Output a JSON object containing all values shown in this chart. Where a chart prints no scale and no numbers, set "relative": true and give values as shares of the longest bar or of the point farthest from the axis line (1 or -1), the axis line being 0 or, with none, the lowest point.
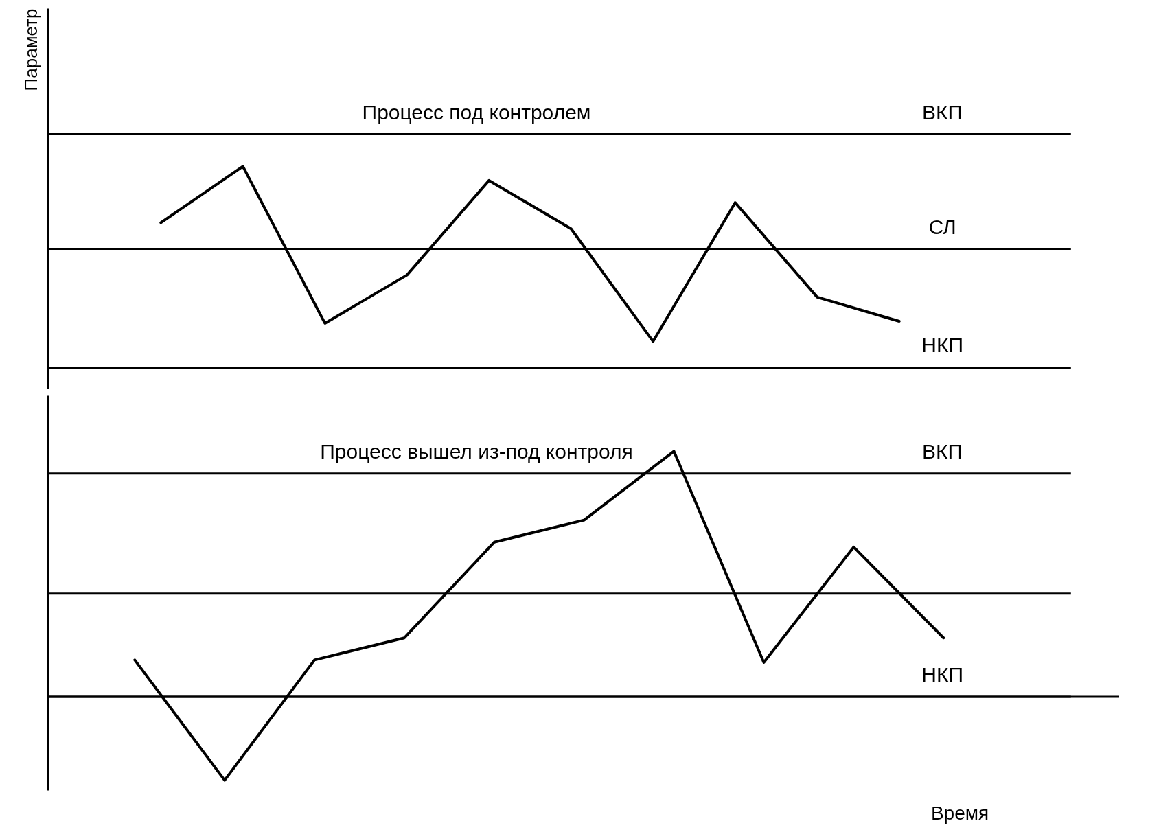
{
  "chart_data": [
    {
      "type": "line",
      "relative": true,
      "ylabel": "Параметр",
      "categories": [
        null,
        null,
        null,
        null,
        null,
        null,
        null,
        null,
        null,
        null
      ],
      "grid": false,
      "marker": "none",
      "line_style": "solid",
      "annotations": [
        "Процесс под контролем"
      ],
      "ref_lines": [
        {
          "axis": "y",
          "value": 1.16,
          "label": "ВКП",
          "color": "#000000"
        },
        {
          "axis": "y",
          "value": 0.59,
          "label": "СЛ",
          "color": "#000000"
        },
        {
          "axis": "y",
          "value": 0,
          "label": "НКП",
          "color": "#000000"
        }
      ],
      "series": [
        {
          "color": "#000000",
          "values": [
            0.72,
            1,
            0.22,
            0.46,
            0.93,
            0.69,
            0.13,
            0.82,
            0.35,
            0.23
          ]
        }
      ]
    },
    {
      "type": "line",
      "relative": true,
      "xlabel": "Время",
      "categories": [
        null,
        null,
        null,
        null,
        null,
        null,
        null,
        null,
        null,
        null
      ],
      "grid": false,
      "marker": "none",
      "line_style": "solid",
      "annotations": [
        "Процесс вышел из-под контроля"
      ],
      "ref_lines": [
        {
          "axis": "y",
          "value": 0.91,
          "label": "ВКП",
          "color": "#000000"
        },
        {
          "axis": "y",
          "value": 0.42,
          "label": null,
          "color": "#000000"
        },
        {
          "axis": "y",
          "value": 0,
          "label": "НКП",
          "color": "#000000"
        }
      ],
      "series": [
        {
          "color": "#000000",
          "values": [
            0.15,
            -0.34,
            0.15,
            0.24,
            0.63,
            0.72,
            1,
            0.14,
            0.61,
            0.24
          ]
        }
      ]
    }
  ]
}
